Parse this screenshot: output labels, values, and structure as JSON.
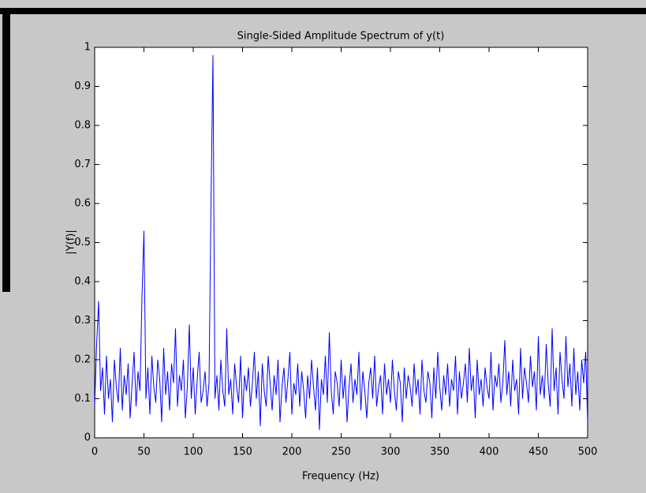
{
  "chart_data": {
    "type": "line",
    "title": "Single-Sided Amplitude Spectrum of y(t)",
    "x_label": "Frequency (Hz)",
    "y_label": "|Y(f)|",
    "x": [
      0,
      2,
      4,
      6,
      8,
      10,
      12,
      14,
      16,
      18,
      20,
      22,
      24,
      26,
      28,
      30,
      32,
      34,
      36,
      38,
      40,
      42,
      44,
      46,
      48,
      50,
      52,
      54,
      56,
      58,
      60,
      62,
      64,
      66,
      68,
      70,
      72,
      74,
      76,
      78,
      80,
      82,
      84,
      86,
      88,
      90,
      92,
      94,
      96,
      98,
      100,
      102,
      104,
      106,
      108,
      110,
      112,
      114,
      116,
      118,
      120,
      122,
      124,
      126,
      128,
      130,
      132,
      134,
      136,
      138,
      140,
      142,
      144,
      146,
      148,
      150,
      152,
      154,
      156,
      158,
      160,
      162,
      164,
      166,
      168,
      170,
      172,
      174,
      176,
      178,
      180,
      182,
      184,
      186,
      188,
      190,
      192,
      194,
      196,
      198,
      200,
      202,
      204,
      206,
      208,
      210,
      212,
      214,
      216,
      218,
      220,
      222,
      224,
      226,
      228,
      230,
      232,
      234,
      236,
      238,
      240,
      242,
      244,
      246,
      248,
      250,
      252,
      254,
      256,
      258,
      260,
      262,
      264,
      266,
      268,
      270,
      272,
      274,
      276,
      278,
      280,
      282,
      284,
      286,
      288,
      290,
      292,
      294,
      296,
      298,
      300,
      302,
      304,
      306,
      308,
      310,
      312,
      314,
      316,
      318,
      320,
      322,
      324,
      326,
      328,
      330,
      332,
      334,
      336,
      338,
      340,
      342,
      344,
      346,
      348,
      350,
      352,
      354,
      356,
      358,
      360,
      362,
      364,
      366,
      368,
      370,
      372,
      374,
      376,
      378,
      380,
      382,
      384,
      386,
      388,
      390,
      392,
      394,
      396,
      398,
      400,
      402,
      404,
      406,
      408,
      410,
      412,
      414,
      416,
      418,
      420,
      422,
      424,
      426,
      428,
      430,
      432,
      434,
      436,
      438,
      440,
      442,
      444,
      446,
      448,
      450,
      452,
      454,
      456,
      458,
      460,
      462,
      464,
      466,
      468,
      470,
      472,
      474,
      476,
      478,
      480,
      482,
      484,
      486,
      488,
      490,
      492,
      494,
      496,
      498,
      500
    ],
    "series": [
      {
        "color": "#0000ff",
        "values": [
          0.08,
          0.24,
          0.35,
          0.12,
          0.18,
          0.06,
          0.21,
          0.1,
          0.15,
          0.04,
          0.2,
          0.13,
          0.09,
          0.23,
          0.07,
          0.16,
          0.11,
          0.19,
          0.05,
          0.14,
          0.22,
          0.08,
          0.17,
          0.12,
          0.36,
          0.53,
          0.1,
          0.18,
          0.06,
          0.21,
          0.13,
          0.09,
          0.2,
          0.15,
          0.04,
          0.23,
          0.11,
          0.17,
          0.07,
          0.19,
          0.14,
          0.28,
          0.08,
          0.16,
          0.12,
          0.2,
          0.05,
          0.13,
          0.29,
          0.1,
          0.18,
          0.06,
          0.15,
          0.22,
          0.09,
          0.12,
          0.17,
          0.08,
          0.14,
          0.6,
          0.98,
          0.1,
          0.16,
          0.07,
          0.2,
          0.12,
          0.08,
          0.28,
          0.11,
          0.15,
          0.06,
          0.19,
          0.13,
          0.09,
          0.21,
          0.05,
          0.16,
          0.12,
          0.18,
          0.08,
          0.14,
          0.22,
          0.1,
          0.17,
          0.03,
          0.19,
          0.12,
          0.08,
          0.21,
          0.14,
          0.07,
          0.16,
          0.11,
          0.2,
          0.04,
          0.13,
          0.18,
          0.09,
          0.15,
          0.22,
          0.06,
          0.14,
          0.11,
          0.19,
          0.08,
          0.17,
          0.12,
          0.05,
          0.16,
          0.1,
          0.2,
          0.13,
          0.07,
          0.18,
          0.02,
          0.15,
          0.11,
          0.21,
          0.09,
          0.27,
          0.12,
          0.06,
          0.17,
          0.14,
          0.08,
          0.2,
          0.1,
          0.16,
          0.04,
          0.13,
          0.19,
          0.09,
          0.15,
          0.11,
          0.22,
          0.07,
          0.17,
          0.12,
          0.05,
          0.14,
          0.18,
          0.1,
          0.21,
          0.08,
          0.13,
          0.16,
          0.06,
          0.19,
          0.11,
          0.15,
          0.09,
          0.2,
          0.12,
          0.07,
          0.17,
          0.14,
          0.04,
          0.18,
          0.1,
          0.16,
          0.13,
          0.08,
          0.19,
          0.11,
          0.15,
          0.06,
          0.2,
          0.12,
          0.09,
          0.17,
          0.14,
          0.05,
          0.18,
          0.1,
          0.22,
          0.13,
          0.07,
          0.16,
          0.11,
          0.19,
          0.08,
          0.15,
          0.12,
          0.21,
          0.06,
          0.17,
          0.1,
          0.14,
          0.19,
          0.09,
          0.23,
          0.12,
          0.16,
          0.05,
          0.2,
          0.11,
          0.15,
          0.08,
          0.18,
          0.13,
          0.1,
          0.22,
          0.07,
          0.16,
          0.13,
          0.19,
          0.09,
          0.14,
          0.25,
          0.11,
          0.17,
          0.08,
          0.2,
          0.12,
          0.15,
          0.06,
          0.23,
          0.1,
          0.18,
          0.14,
          0.09,
          0.21,
          0.13,
          0.17,
          0.07,
          0.26,
          0.11,
          0.16,
          0.1,
          0.24,
          0.14,
          0.08,
          0.28,
          0.12,
          0.18,
          0.06,
          0.22,
          0.15,
          0.1,
          0.26,
          0.13,
          0.19,
          0.08,
          0.23,
          0.11,
          0.17,
          0.07,
          0.2,
          0.14,
          0.22,
          0.04
        ]
      }
    ],
    "xlim": [
      0,
      500
    ],
    "xticks": [
      0,
      50,
      100,
      150,
      200,
      250,
      300,
      350,
      400,
      450,
      500
    ],
    "ylim": [
      0,
      1
    ],
    "yticks": [
      0,
      0.1,
      0.2,
      0.3,
      0.4,
      0.5,
      0.6,
      0.7,
      0.8,
      0.9,
      1
    ],
    "grid": false
  }
}
